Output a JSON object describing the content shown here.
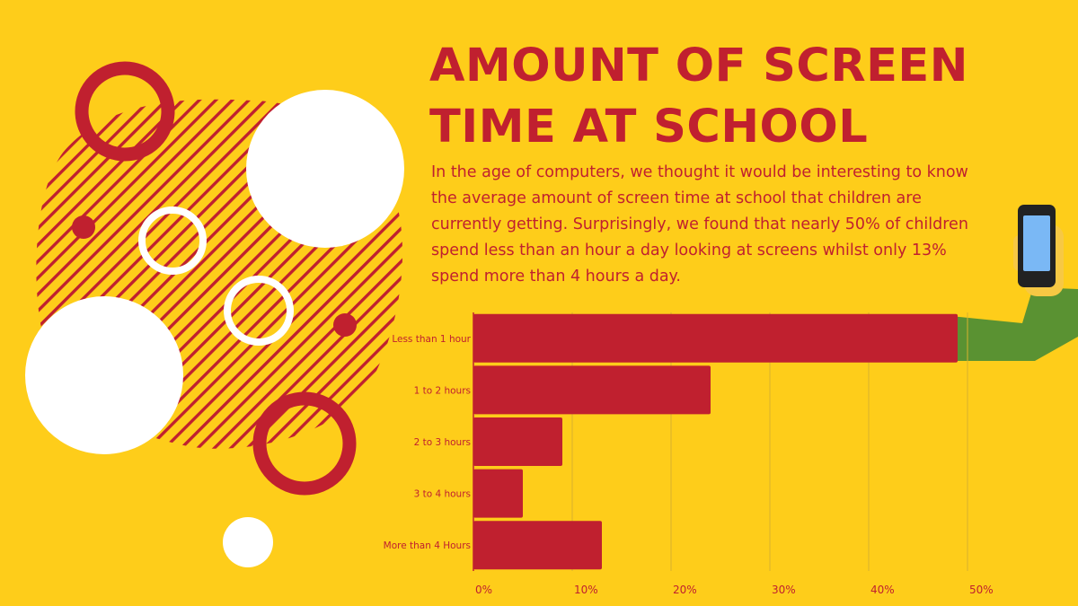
{
  "title_lines": [
    "AMOUNT OF SCREEN",
    "TIME AT SCHOOL"
  ],
  "description": "In the age of computers, we thought it would be interesting to know the average amount of screen time at school that children are currently getting. Surprisingly, we found that nearly 50% of children spend less than an hour a day looking at screens whilst only 13% spend more than 4 hours a day.",
  "colors": {
    "background": "#fecd1a",
    "accent": "#c0202f",
    "sleeve": "#5a9232",
    "white": "#ffffff"
  },
  "chart_data": {
    "type": "bar",
    "orientation": "horizontal",
    "categories": [
      "Less than 1 hour",
      "1 to 2 hours",
      "2 to 3 hours",
      "3 to 4 hours",
      "More than 4 Hours"
    ],
    "values": [
      49,
      24,
      9,
      5,
      13
    ],
    "xlim": [
      0,
      50
    ],
    "xticks": [
      "0%",
      "10%",
      "20%",
      "30%",
      "40%",
      "50%"
    ],
    "grid": true,
    "legend": "none"
  }
}
